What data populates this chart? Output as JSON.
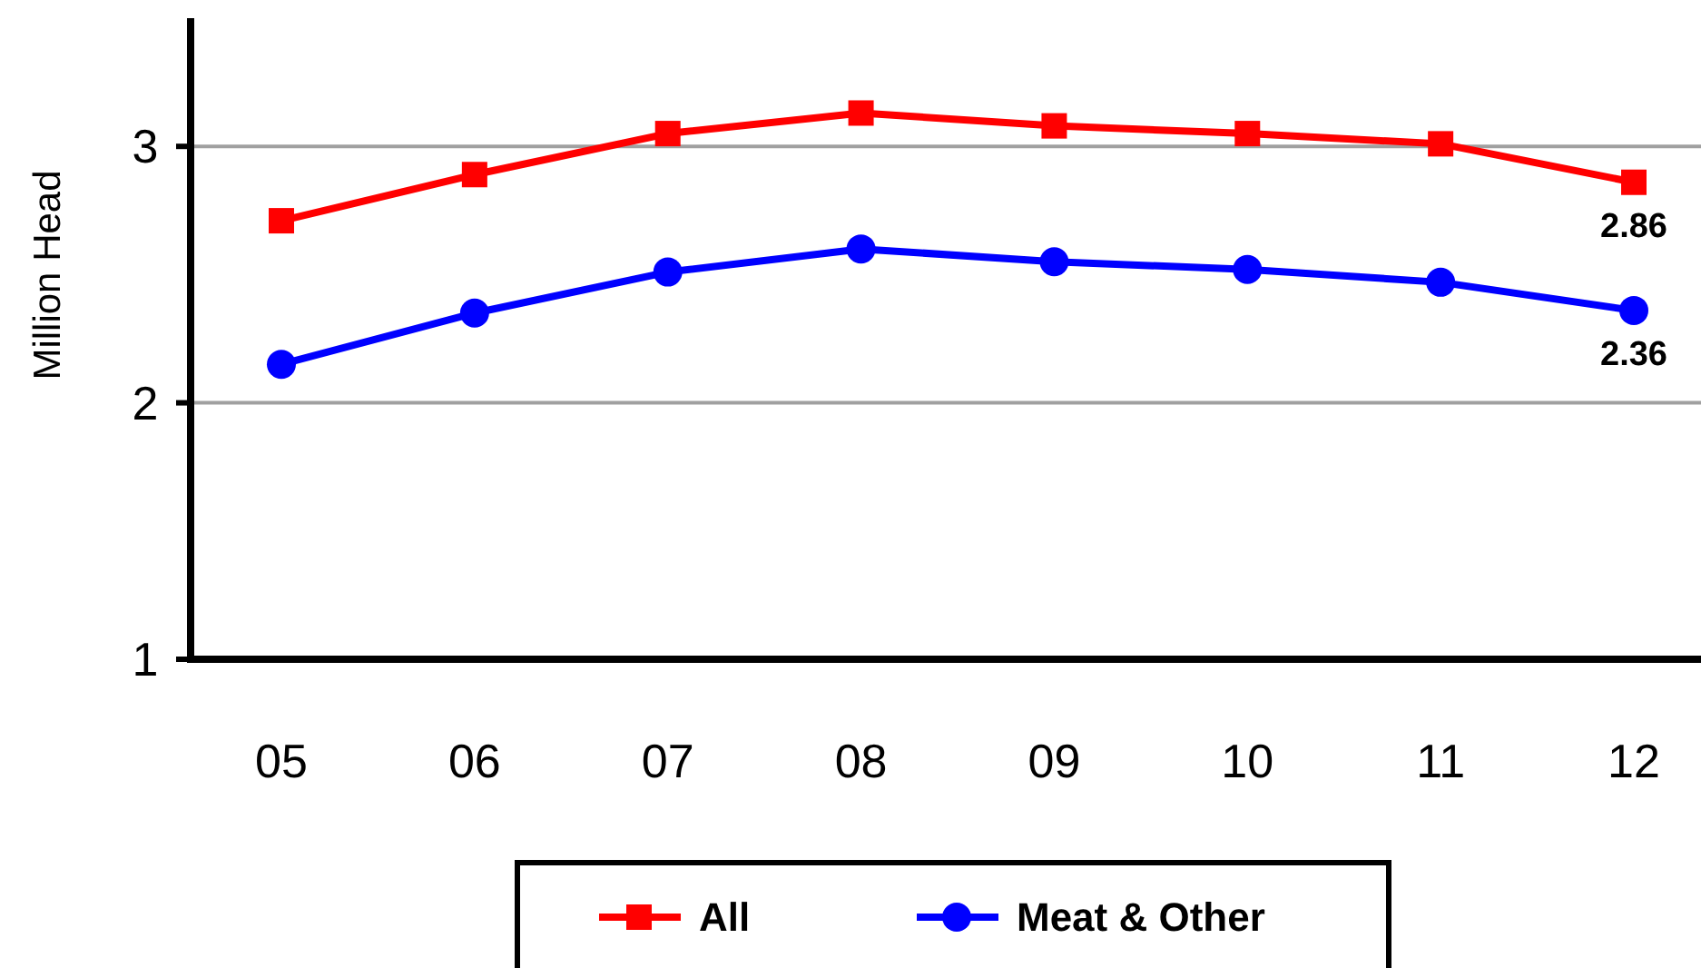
{
  "chart_data": {
    "type": "line",
    "ylabel": "Million Head",
    "categories": [
      "05",
      "06",
      "07",
      "08",
      "09",
      "10",
      "11",
      "12"
    ],
    "series": [
      {
        "name": "All",
        "color": "#ff0000",
        "marker": "square",
        "values": [
          2.71,
          2.89,
          3.05,
          3.13,
          3.08,
          3.05,
          3.01,
          2.86
        ],
        "value_labels": [
          null,
          null,
          null,
          null,
          null,
          null,
          null,
          "2.86"
        ]
      },
      {
        "name": "Meat & Other",
        "color": "#0000ff",
        "marker": "circle",
        "values": [
          2.15,
          2.35,
          2.51,
          2.6,
          2.55,
          2.52,
          2.47,
          2.36
        ],
        "value_labels": [
          null,
          null,
          null,
          null,
          null,
          null,
          null,
          "2.36"
        ]
      }
    ],
    "ylim": [
      1,
      3.5
    ],
    "yticks": [
      1,
      2,
      3
    ],
    "grid": "y",
    "legend": "bottom"
  }
}
